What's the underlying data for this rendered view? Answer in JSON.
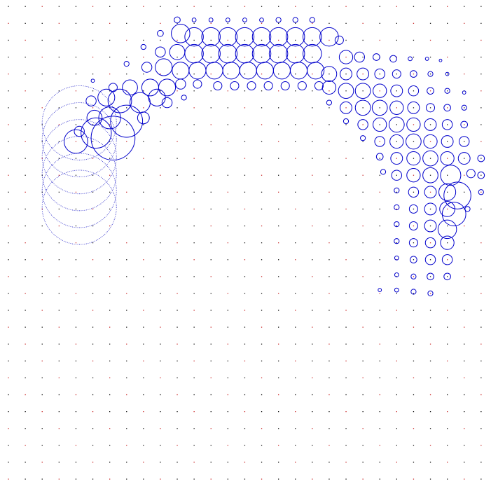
{
  "chart_data": {
    "type": "scatter",
    "title": "",
    "xlabel": "",
    "ylabel": "",
    "axes_visible": false,
    "grid": false,
    "legend": "none",
    "colors": {
      "background": "#ffffff",
      "circle_stroke": "#0000cc",
      "grid_dot": "#1a1a1a",
      "grid_dot_alt": "#cc3333",
      "dotted_circle_stroke": "#3333cc"
    },
    "grid_points": {
      "columns": 29,
      "rows": 29,
      "x_range": [
        0,
        28
      ],
      "y_range": [
        0,
        28
      ]
    },
    "series": [
      {
        "marker": "open-circle",
        "points": [
          [
            10.0,
            27.2,
            0.18
          ],
          [
            11.0,
            27.2,
            0.12
          ],
          [
            12.0,
            27.2,
            0.12
          ],
          [
            13.0,
            27.2,
            0.12
          ],
          [
            14.0,
            27.2,
            0.12
          ],
          [
            15.0,
            27.2,
            0.12
          ],
          [
            16.0,
            27.2,
            0.15
          ],
          [
            17.0,
            27.2,
            0.15
          ],
          [
            18.0,
            27.2,
            0.15
          ],
          [
            9.0,
            26.4,
            0.18
          ],
          [
            10.2,
            26.4,
            0.55
          ],
          [
            11.0,
            26.2,
            0.55
          ],
          [
            12.0,
            26.2,
            0.55
          ],
          [
            13.0,
            26.2,
            0.55
          ],
          [
            14.0,
            26.2,
            0.55
          ],
          [
            15.0,
            26.2,
            0.55
          ],
          [
            16.0,
            26.2,
            0.55
          ],
          [
            17.0,
            26.2,
            0.55
          ],
          [
            18.0,
            26.2,
            0.55
          ],
          [
            19.0,
            26.2,
            0.55
          ],
          [
            19.6,
            26.0,
            0.25
          ],
          [
            8.0,
            25.6,
            0.15
          ],
          [
            9.0,
            25.3,
            0.3
          ],
          [
            10.0,
            25.3,
            0.45
          ],
          [
            11.0,
            25.2,
            0.55
          ],
          [
            12.0,
            25.2,
            0.55
          ],
          [
            13.0,
            25.2,
            0.55
          ],
          [
            14.0,
            25.2,
            0.55
          ],
          [
            15.0,
            25.2,
            0.55
          ],
          [
            16.0,
            25.2,
            0.55
          ],
          [
            17.0,
            25.2,
            0.55
          ],
          [
            18.0,
            25.2,
            0.55
          ],
          [
            20.0,
            25.0,
            0.4
          ],
          [
            20.8,
            25.0,
            0.3
          ],
          [
            21.8,
            25.0,
            0.2
          ],
          [
            22.8,
            24.9,
            0.2
          ],
          [
            23.8,
            24.9,
            0.12
          ],
          [
            24.8,
            24.9,
            0.1
          ],
          [
            25.6,
            24.8,
            0.08
          ],
          [
            7.0,
            24.6,
            0.15
          ],
          [
            8.2,
            24.4,
            0.3
          ],
          [
            9.2,
            24.4,
            0.5
          ],
          [
            10.2,
            24.2,
            0.5
          ],
          [
            11.2,
            24.2,
            0.5
          ],
          [
            12.2,
            24.2,
            0.5
          ],
          [
            13.2,
            24.2,
            0.5
          ],
          [
            14.2,
            24.2,
            0.5
          ],
          [
            15.2,
            24.2,
            0.5
          ],
          [
            16.2,
            24.2,
            0.5
          ],
          [
            17.2,
            24.2,
            0.5
          ],
          [
            18.2,
            24.2,
            0.5
          ],
          [
            19.0,
            24.0,
            0.45
          ],
          [
            20.0,
            24.0,
            0.35
          ],
          [
            21.0,
            24.0,
            0.35
          ],
          [
            22.0,
            24.0,
            0.3
          ],
          [
            23.0,
            24.0,
            0.25
          ],
          [
            24.0,
            24.0,
            0.2
          ],
          [
            25.0,
            24.0,
            0.15
          ],
          [
            26.0,
            24.0,
            0.1
          ],
          [
            5.0,
            23.6,
            0.1
          ],
          [
            6.2,
            23.2,
            0.25
          ],
          [
            7.2,
            23.2,
            0.45
          ],
          [
            8.4,
            23.2,
            0.5
          ],
          [
            9.4,
            23.2,
            0.5
          ],
          [
            10.2,
            23.4,
            0.3
          ],
          [
            11.2,
            23.4,
            0.25
          ],
          [
            12.4,
            23.3,
            0.25
          ],
          [
            13.4,
            23.3,
            0.25
          ],
          [
            14.4,
            23.3,
            0.25
          ],
          [
            15.4,
            23.3,
            0.25
          ],
          [
            16.4,
            23.3,
            0.25
          ],
          [
            17.4,
            23.3,
            0.25
          ],
          [
            18.4,
            23.3,
            0.25
          ],
          [
            19.0,
            23.2,
            0.4
          ],
          [
            20.0,
            23.0,
            0.45
          ],
          [
            21.0,
            23.0,
            0.45
          ],
          [
            22.0,
            23.0,
            0.4
          ],
          [
            23.0,
            23.0,
            0.35
          ],
          [
            24.0,
            23.0,
            0.3
          ],
          [
            25.0,
            23.0,
            0.2
          ],
          [
            26.0,
            23.0,
            0.15
          ],
          [
            27.0,
            22.9,
            0.1
          ],
          [
            4.9,
            22.4,
            0.3
          ],
          [
            5.8,
            22.6,
            0.5
          ],
          [
            6.6,
            22.4,
            0.7
          ],
          [
            7.8,
            22.3,
            0.6
          ],
          [
            8.8,
            22.6,
            0.5
          ],
          [
            9.4,
            22.3,
            0.3
          ],
          [
            10.4,
            22.6,
            0.15
          ],
          [
            19.0,
            22.3,
            0.15
          ],
          [
            20.0,
            22.0,
            0.35
          ],
          [
            21.0,
            22.0,
            0.45
          ],
          [
            22.0,
            22.0,
            0.45
          ],
          [
            23.0,
            22.0,
            0.4
          ],
          [
            24.0,
            22.0,
            0.35
          ],
          [
            25.0,
            22.0,
            0.25
          ],
          [
            26.0,
            22.0,
            0.2
          ],
          [
            27.0,
            22.0,
            0.15
          ],
          [
            5.1,
            21.4,
            0.45
          ],
          [
            6.0,
            21.4,
            0.65
          ],
          [
            7.0,
            21.2,
            0.95
          ],
          [
            8.0,
            21.4,
            0.35
          ],
          [
            20.0,
            21.2,
            0.15
          ],
          [
            21.0,
            21.0,
            0.3
          ],
          [
            22.0,
            21.0,
            0.4
          ],
          [
            23.0,
            21.0,
            0.45
          ],
          [
            24.0,
            21.0,
            0.4
          ],
          [
            25.0,
            21.0,
            0.35
          ],
          [
            26.0,
            21.0,
            0.3
          ],
          [
            27.0,
            21.0,
            0.2
          ],
          [
            4.2,
            20.6,
            0.3
          ],
          [
            4.0,
            20.0,
            0.7
          ],
          [
            5.2,
            20.5,
            0.9
          ],
          [
            6.2,
            20.2,
            1.3
          ],
          [
            21.0,
            20.2,
            0.15
          ],
          [
            22.0,
            20.0,
            0.3
          ],
          [
            23.0,
            20.0,
            0.4
          ],
          [
            24.0,
            20.0,
            0.45
          ],
          [
            25.0,
            20.0,
            0.4
          ],
          [
            26.0,
            20.0,
            0.35
          ],
          [
            27.0,
            20.0,
            0.3
          ],
          [
            22.0,
            19.1,
            0.2
          ],
          [
            23.0,
            19.0,
            0.35
          ],
          [
            24.0,
            19.0,
            0.4
          ],
          [
            25.0,
            19.0,
            0.45
          ],
          [
            26.0,
            19.0,
            0.4
          ],
          [
            27.0,
            19.0,
            0.35
          ],
          [
            28.0,
            19.0,
            0.2
          ],
          [
            22.2,
            18.2,
            0.15
          ],
          [
            23.0,
            18.0,
            0.3
          ],
          [
            24.0,
            18.0,
            0.4
          ],
          [
            25.0,
            18.0,
            0.45
          ],
          [
            26.2,
            18.0,
            0.6
          ],
          [
            27.4,
            18.1,
            0.25
          ],
          [
            28.0,
            18.0,
            0.2
          ],
          [
            23.0,
            17.1,
            0.15
          ],
          [
            24.0,
            17.0,
            0.3
          ],
          [
            25.0,
            17.0,
            0.35
          ],
          [
            26.0,
            17.0,
            0.5
          ],
          [
            26.6,
            16.8,
            0.8
          ],
          [
            28.0,
            17.0,
            0.15
          ],
          [
            23.0,
            16.1,
            0.15
          ],
          [
            24.0,
            16.0,
            0.25
          ],
          [
            25.0,
            16.0,
            0.35
          ],
          [
            26.0,
            16.0,
            0.45
          ],
          [
            26.4,
            15.7,
            0.7
          ],
          [
            27.2,
            16.0,
            0.15
          ],
          [
            23.0,
            15.1,
            0.15
          ],
          [
            24.0,
            15.0,
            0.25
          ],
          [
            25.0,
            15.0,
            0.35
          ],
          [
            26.0,
            14.8,
            0.55
          ],
          [
            23.0,
            14.1,
            0.15
          ],
          [
            24.0,
            14.0,
            0.25
          ],
          [
            25.0,
            14.0,
            0.3
          ],
          [
            26.0,
            14.0,
            0.4
          ],
          [
            23.0,
            13.1,
            0.12
          ],
          [
            24.0,
            13.0,
            0.2
          ],
          [
            25.0,
            13.0,
            0.3
          ],
          [
            26.0,
            13.0,
            0.3
          ],
          [
            23.0,
            12.1,
            0.12
          ],
          [
            24.0,
            12.0,
            0.15
          ],
          [
            25.0,
            12.0,
            0.2
          ],
          [
            26.0,
            12.0,
            0.2
          ],
          [
            22.0,
            11.2,
            0.1
          ],
          [
            23.0,
            11.2,
            0.12
          ],
          [
            24.0,
            11.1,
            0.15
          ],
          [
            25.0,
            11.0,
            0.15
          ]
        ]
      },
      {
        "marker": "dotted-circle",
        "points": [
          [
            4.2,
            21.1,
            2.2
          ],
          [
            4.2,
            20.1,
            2.2
          ],
          [
            4.2,
            19.1,
            2.2
          ],
          [
            4.2,
            18.1,
            2.2
          ],
          [
            4.2,
            17.1,
            2.2
          ],
          [
            4.2,
            16.1,
            2.2
          ]
        ]
      }
    ]
  }
}
